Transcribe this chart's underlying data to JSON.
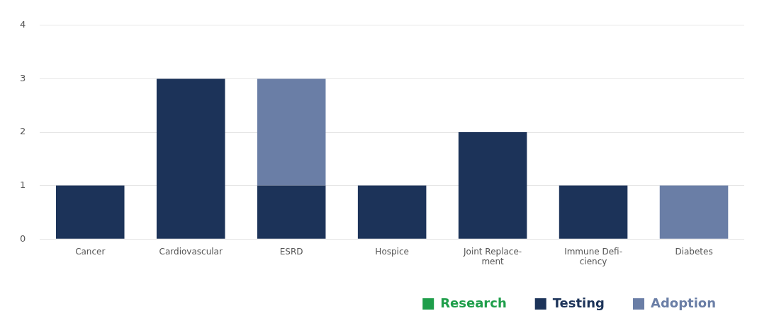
{
  "chart_data": {
    "type": "bar",
    "stacked": true,
    "categories": [
      "Cancer",
      "Cardiovascular",
      "ESRD",
      "Hospice",
      "Joint Replace-\nment",
      "Immune Defi-\nciency",
      "Diabetes"
    ],
    "series": [
      {
        "name": "Research",
        "color": "#1e9e4a",
        "values": [
          0,
          0,
          0,
          0,
          0,
          0,
          0
        ]
      },
      {
        "name": "Testing",
        "color": "#1c3359",
        "values": [
          1,
          3,
          1,
          1,
          2,
          1,
          0
        ]
      },
      {
        "name": "Adoption",
        "color": "#6a7ea6",
        "values": [
          0,
          0,
          2,
          0,
          0,
          0,
          1
        ]
      }
    ],
    "ylim": [
      0,
      4
    ],
    "yticks": [
      0,
      1,
      2,
      3,
      4
    ],
    "grid": "y",
    "legend": "bottom right"
  }
}
